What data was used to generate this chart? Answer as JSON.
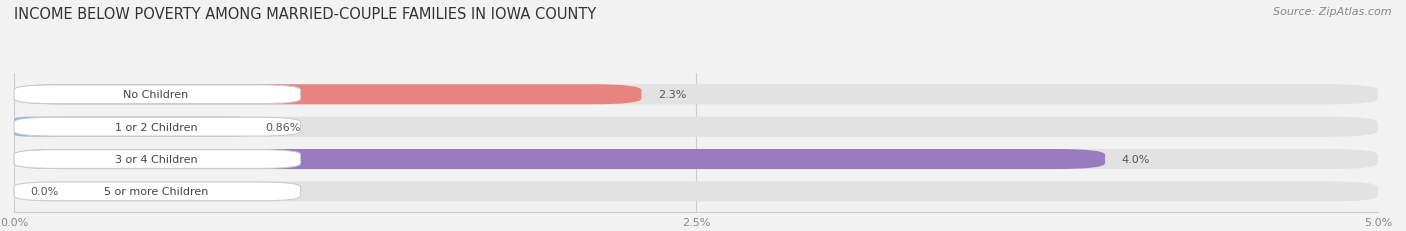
{
  "title": "INCOME BELOW POVERTY AMONG MARRIED-COUPLE FAMILIES IN IOWA COUNTY",
  "source": "Source: ZipAtlas.com",
  "categories": [
    "No Children",
    "1 or 2 Children",
    "3 or 4 Children",
    "5 or more Children"
  ],
  "values": [
    2.3,
    0.86,
    4.0,
    0.0
  ],
  "bar_colors": [
    "#E8837E",
    "#90B8E0",
    "#9B7BBF",
    "#6ECDD4"
  ],
  "label_texts": [
    "2.3%",
    "0.86%",
    "4.0%",
    "0.0%"
  ],
  "xlim": [
    0,
    5.0
  ],
  "xticks": [
    0.0,
    2.5,
    5.0
  ],
  "xtick_labels": [
    "0.0%",
    "2.5%",
    "5.0%"
  ],
  "background_color": "#f2f2f2",
  "bar_bg_color": "#e2e2e2",
  "title_fontsize": 10.5,
  "source_fontsize": 8,
  "label_fontsize": 8,
  "tick_fontsize": 8
}
